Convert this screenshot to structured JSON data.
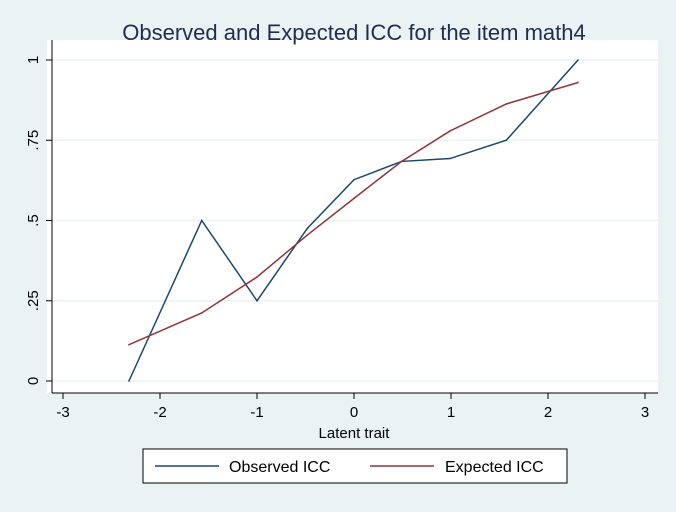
{
  "chart_data": {
    "type": "line",
    "title": "Observed and Expected ICC for the item math4",
    "xlabel": "Latent trait",
    "ylabel": "",
    "xlim": [
      -3,
      3
    ],
    "ylim": [
      0,
      1
    ],
    "x_ticks": [
      -3,
      -2,
      -1,
      0,
      1,
      2,
      3
    ],
    "x_tick_labels": [
      "-3",
      "-2",
      "-1",
      "0",
      "1",
      "2",
      "3"
    ],
    "y_ticks": [
      0,
      0.25,
      0.5,
      0.75,
      1
    ],
    "y_tick_labels": [
      "0",
      ".25",
      ".5",
      ".75",
      "1"
    ],
    "grid": true,
    "legend_position": "bottom",
    "x": [
      -2.32,
      -1.57,
      -1.0,
      -0.48,
      0.0,
      0.49,
      0.99,
      1.57,
      2.31
    ],
    "series": [
      {
        "name": "Observed ICC",
        "color": "#1a476f",
        "values": [
          0.0,
          0.5,
          0.25,
          0.476,
          0.627,
          0.684,
          0.693,
          0.75,
          1.0
        ]
      },
      {
        "name": "Expected ICC",
        "color": "#90353b",
        "values": [
          0.113,
          0.212,
          0.324,
          0.455,
          0.569,
          0.684,
          0.779,
          0.863,
          0.93
        ]
      }
    ]
  }
}
